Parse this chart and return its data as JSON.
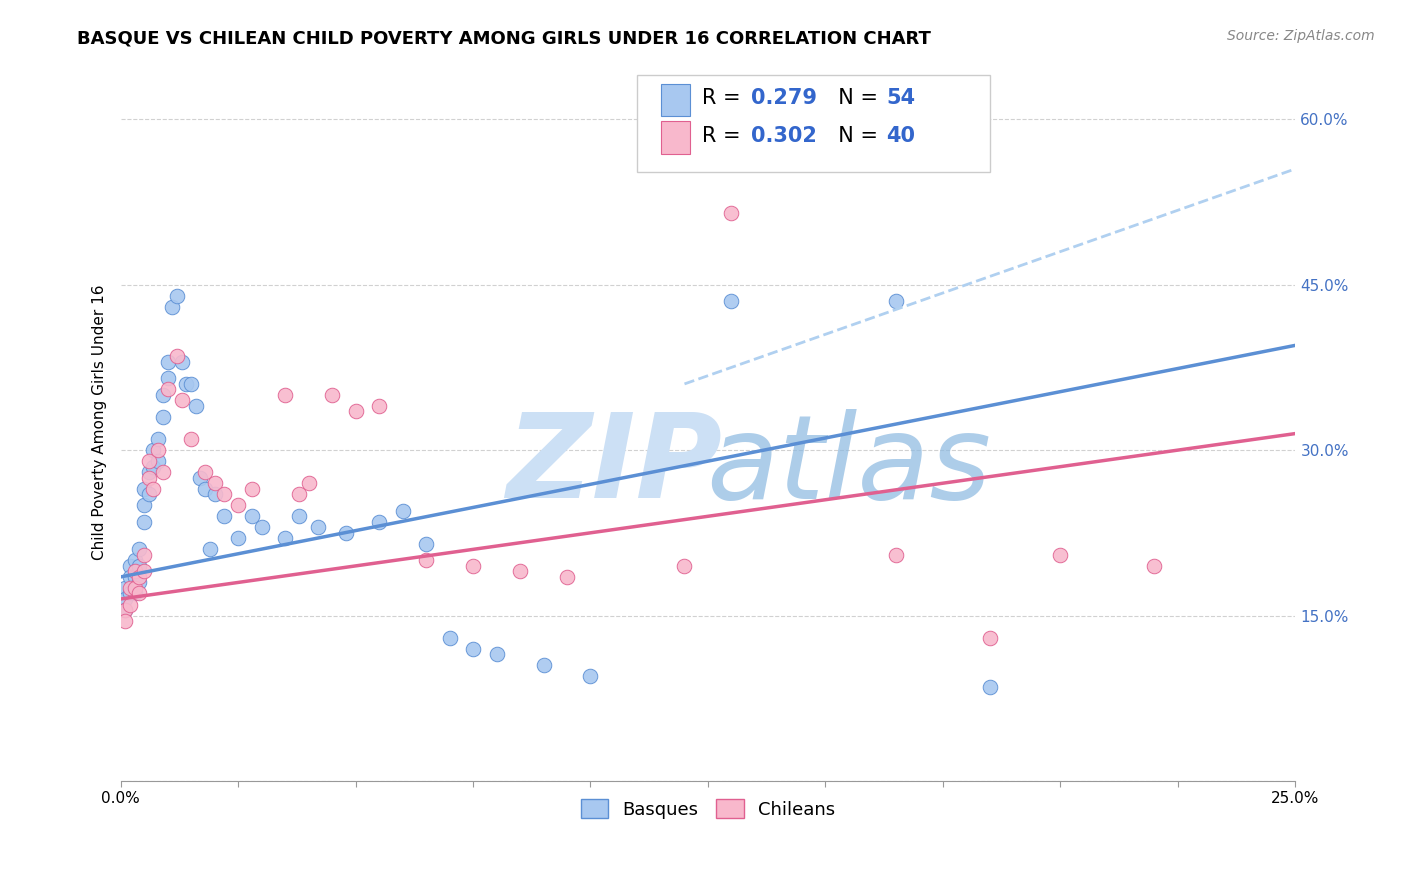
{
  "title": "BASQUE VS CHILEAN CHILD POVERTY AMONG GIRLS UNDER 16 CORRELATION CHART",
  "source": "Source: ZipAtlas.com",
  "ylabel": "Child Poverty Among Girls Under 16",
  "xlim": [
    0.0,
    0.25
  ],
  "ylim": [
    0.0,
    0.65
  ],
  "ytick_positions": [
    0.0,
    0.15,
    0.3,
    0.45,
    0.6
  ],
  "right_yticklabels": [
    "",
    "15.0%",
    "30.0%",
    "45.0%",
    "60.0%"
  ],
  "blue_color": "#a8c8f0",
  "blue_edge_color": "#5b8fd4",
  "pink_color": "#f8b8cc",
  "pink_edge_color": "#e06090",
  "blue_line_color": "#5b8fd4",
  "pink_line_color": "#e06090",
  "dashed_line_color": "#b0d0f0",
  "right_yticks_color": "#4472c4",
  "watermark_color": "#cce0f5",
  "blue_trend": [
    0.0,
    0.25,
    0.185,
    0.395
  ],
  "pink_trend": [
    0.0,
    0.25,
    0.165,
    0.315
  ],
  "dashed_trend": [
    0.12,
    0.25,
    0.36,
    0.555
  ],
  "blue_pts_x": [
    0.001,
    0.001,
    0.001,
    0.002,
    0.002,
    0.002,
    0.003,
    0.003,
    0.003,
    0.004,
    0.004,
    0.004,
    0.005,
    0.005,
    0.005,
    0.006,
    0.006,
    0.007,
    0.007,
    0.008,
    0.008,
    0.009,
    0.009,
    0.01,
    0.01,
    0.011,
    0.012,
    0.013,
    0.014,
    0.015,
    0.016,
    0.017,
    0.018,
    0.019,
    0.02,
    0.022,
    0.025,
    0.028,
    0.03,
    0.035,
    0.038,
    0.042,
    0.048,
    0.055,
    0.06,
    0.065,
    0.07,
    0.075,
    0.08,
    0.09,
    0.1,
    0.13,
    0.165,
    0.185
  ],
  "blue_pts_y": [
    0.175,
    0.165,
    0.155,
    0.195,
    0.185,
    0.17,
    0.2,
    0.185,
    0.17,
    0.195,
    0.21,
    0.18,
    0.265,
    0.25,
    0.235,
    0.28,
    0.26,
    0.3,
    0.285,
    0.31,
    0.29,
    0.35,
    0.33,
    0.38,
    0.365,
    0.43,
    0.44,
    0.38,
    0.36,
    0.36,
    0.34,
    0.275,
    0.265,
    0.21,
    0.26,
    0.24,
    0.22,
    0.24,
    0.23,
    0.22,
    0.24,
    0.23,
    0.225,
    0.235,
    0.245,
    0.215,
    0.13,
    0.12,
    0.115,
    0.105,
    0.095,
    0.435,
    0.435,
    0.085
  ],
  "pink_pts_x": [
    0.001,
    0.001,
    0.002,
    0.002,
    0.003,
    0.003,
    0.004,
    0.004,
    0.005,
    0.005,
    0.006,
    0.006,
    0.007,
    0.008,
    0.009,
    0.01,
    0.012,
    0.013,
    0.015,
    0.018,
    0.02,
    0.022,
    0.025,
    0.028,
    0.035,
    0.038,
    0.04,
    0.045,
    0.05,
    0.055,
    0.065,
    0.075,
    0.085,
    0.095,
    0.12,
    0.13,
    0.165,
    0.185,
    0.2,
    0.22
  ],
  "pink_pts_y": [
    0.155,
    0.145,
    0.175,
    0.16,
    0.19,
    0.175,
    0.185,
    0.17,
    0.205,
    0.19,
    0.29,
    0.275,
    0.265,
    0.3,
    0.28,
    0.355,
    0.385,
    0.345,
    0.31,
    0.28,
    0.27,
    0.26,
    0.25,
    0.265,
    0.35,
    0.26,
    0.27,
    0.35,
    0.335,
    0.34,
    0.2,
    0.195,
    0.19,
    0.185,
    0.195,
    0.515,
    0.205,
    0.13,
    0.205,
    0.195
  ],
  "title_fontsize": 13,
  "axis_label_fontsize": 11,
  "tick_fontsize": 11,
  "legend_fontsize": 16,
  "source_fontsize": 10,
  "marker_size": 110
}
